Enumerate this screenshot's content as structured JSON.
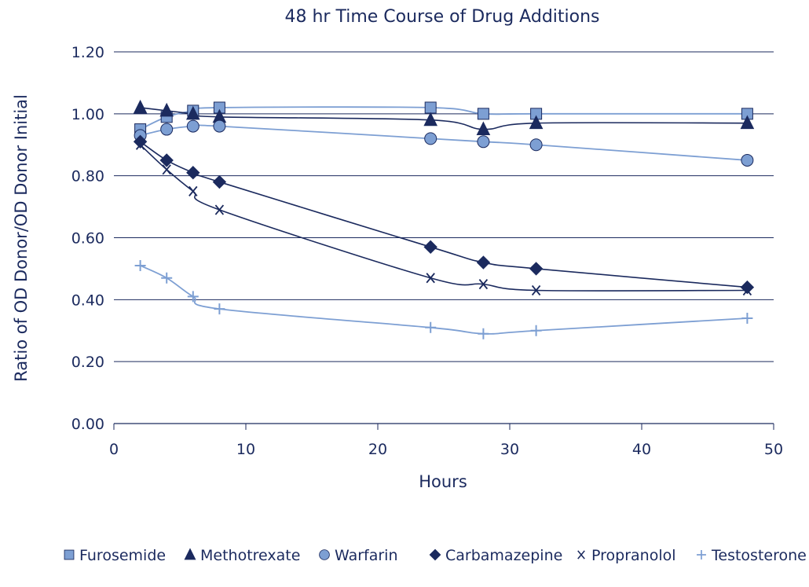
{
  "chart_data": {
    "type": "line",
    "title": "48 hr Time Course of Drug Additions",
    "xlabel": "Hours",
    "ylabel": "Ratio of OD Donor/OD Donor Initial",
    "xlim": [
      0,
      50
    ],
    "ylim": [
      0,
      1.2
    ],
    "xticks": [
      "0",
      "10",
      "20",
      "30",
      "40",
      "50"
    ],
    "yticks": [
      "0.00",
      "0.20",
      "0.40",
      "0.60",
      "0.80",
      "1.00",
      "1.20"
    ],
    "grid": "horizontal",
    "legend_position": "bottom",
    "x": [
      2,
      4,
      6,
      8,
      24,
      28,
      32,
      48
    ],
    "series": [
      {
        "name": "Furosemide",
        "marker": "square",
        "color": "#7d9fd3",
        "values": [
          0.95,
          0.99,
          1.01,
          1.02,
          1.02,
          1.0,
          1.0,
          1.0
        ]
      },
      {
        "name": "Methotrexate",
        "marker": "triangle",
        "color": "#1b2a5e",
        "values": [
          1.02,
          1.01,
          1.0,
          0.99,
          0.98,
          0.95,
          0.97,
          0.97
        ]
      },
      {
        "name": "Warfarin",
        "marker": "circle",
        "color": "#7d9fd3",
        "values": [
          0.93,
          0.95,
          0.96,
          0.96,
          0.92,
          0.91,
          0.9,
          0.85
        ]
      },
      {
        "name": "Carbamazepine",
        "marker": "diamond",
        "color": "#1b2a5e",
        "values": [
          0.91,
          0.85,
          0.81,
          0.78,
          0.57,
          0.52,
          0.5,
          0.44
        ]
      },
      {
        "name": "Propranolol",
        "marker": "x",
        "color": "#1b2a5e",
        "values": [
          0.9,
          0.82,
          0.75,
          0.69,
          0.47,
          0.45,
          0.43,
          0.43
        ]
      },
      {
        "name": "Testosterone",
        "marker": "plus",
        "color": "#7d9fd3",
        "values": [
          0.51,
          0.47,
          0.41,
          0.37,
          0.31,
          0.29,
          0.3,
          0.34
        ]
      }
    ]
  }
}
